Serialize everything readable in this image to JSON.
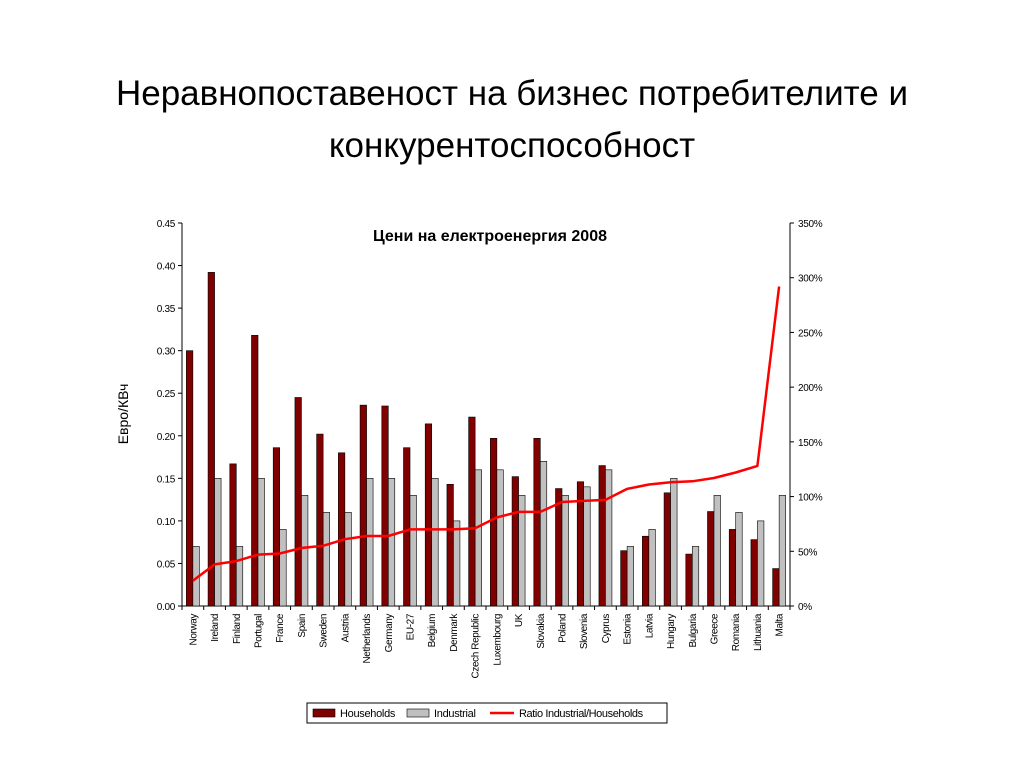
{
  "slide": {
    "title_line1": "Неравнопоставеност на бизнес потребителите и",
    "title_line2": "конкурентоспособност"
  },
  "chart_data": {
    "type": "bar",
    "title": "Цени на електроенергия 2008",
    "ylabel": "Евро/КВч",
    "xlabel": "",
    "ylim": [
      0,
      0.45
    ],
    "y_ticks": [
      "0.00",
      "0.05",
      "0.10",
      "0.15",
      "0.20",
      "0.25",
      "0.30",
      "0.35",
      "0.40",
      "0.45"
    ],
    "y2lim": [
      0,
      3.5
    ],
    "y2_ticks": [
      "0%",
      "50%",
      "100%",
      "150%",
      "200%",
      "250%",
      "300%",
      "350%"
    ],
    "legend_position": "bottom",
    "grid": false,
    "categories": [
      "Norway",
      "Ireland",
      "Finland",
      "Portugal",
      "France",
      "Spain",
      "Sweden",
      "Austria",
      "Netherlands",
      "Germany",
      "EU-27",
      "Belgium",
      "Denmark",
      "Czech Republic",
      "Luxembourg",
      "UK",
      "Slovakia",
      "Poland",
      "Slovenia",
      "Cyprus",
      "Estonia",
      "Latvia",
      "Hungary",
      "Bulgaria",
      "Greece",
      "Romania",
      "Lithuania",
      "Malta"
    ],
    "series": [
      {
        "name": "Households",
        "kind": "bar",
        "axis": "left",
        "color": "#800000",
        "values": [
          0.3,
          0.392,
          0.167,
          0.318,
          0.186,
          0.245,
          0.202,
          0.18,
          0.236,
          0.235,
          0.186,
          0.214,
          0.143,
          0.222,
          0.197,
          0.152,
          0.197,
          0.138,
          0.146,
          0.165,
          0.065,
          0.082,
          0.133,
          0.061,
          0.111,
          0.09,
          0.078,
          0.044
        ]
      },
      {
        "name": "Industrial",
        "kind": "bar",
        "axis": "left",
        "color": "#c0c0c0",
        "values": [
          0.07,
          0.15,
          0.07,
          0.15,
          0.09,
          0.13,
          0.11,
          0.11,
          0.15,
          0.15,
          0.13,
          0.15,
          0.1,
          0.16,
          0.16,
          0.13,
          0.17,
          0.13,
          0.14,
          0.16,
          0.07,
          0.09,
          0.15,
          0.07,
          0.13,
          0.11,
          0.1,
          0.13
        ]
      },
      {
        "name": "Ratio Industrial/Households",
        "kind": "line",
        "axis": "right",
        "color": "#ff0000",
        "values": [
          0.23,
          0.38,
          0.41,
          0.47,
          0.48,
          0.53,
          0.55,
          0.61,
          0.64,
          0.64,
          0.7,
          0.7,
          0.7,
          0.71,
          0.81,
          0.86,
          0.86,
          0.95,
          0.96,
          0.97,
          1.07,
          1.11,
          1.13,
          1.14,
          1.17,
          1.22,
          1.28,
          2.92
        ]
      }
    ]
  }
}
